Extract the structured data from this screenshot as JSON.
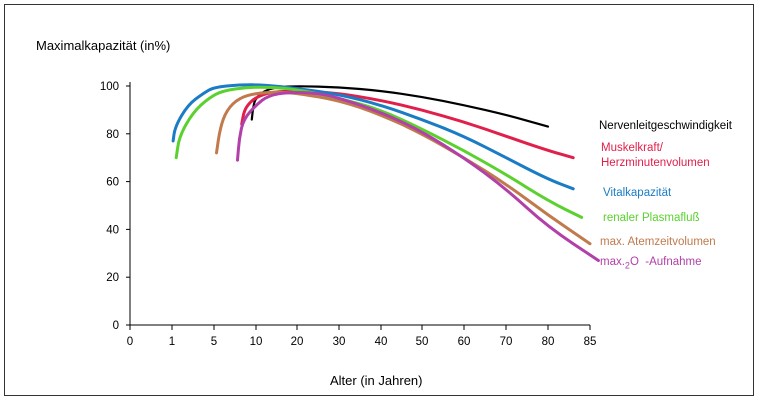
{
  "chart_data": {
    "type": "line",
    "title": "",
    "ylabel": "Maximalkapazität (in%)",
    "xlabel": "Alter (in Jahren)",
    "xticks": [
      0,
      1,
      5,
      10,
      20,
      30,
      40,
      50,
      60,
      70,
      80,
      85
    ],
    "yticks": [
      0,
      20,
      40,
      60,
      80,
      100
    ],
    "ylim": [
      0,
      100
    ],
    "grid": false,
    "legend_placement": "right",
    "series": [
      {
        "name": "Nervenleitgeschwindigkeit",
        "color": "#000000",
        "points": [
          [
            9.5,
            86
          ],
          [
            9.7,
            92
          ],
          [
            10,
            95
          ],
          [
            12,
            98
          ],
          [
            15,
            99.5
          ],
          [
            20,
            100
          ],
          [
            30,
            99.5
          ],
          [
            40,
            98
          ],
          [
            50,
            95.5
          ],
          [
            60,
            92
          ],
          [
            70,
            88
          ],
          [
            80,
            83
          ]
        ]
      },
      {
        "name": "Muskelkraft/ Herzminutenvolumen",
        "color": "#e0204a",
        "points": [
          [
            8.3,
            84
          ],
          [
            8.6,
            90
          ],
          [
            9.5,
            94
          ],
          [
            11,
            96
          ],
          [
            14,
            97.5
          ],
          [
            20,
            98
          ],
          [
            30,
            97
          ],
          [
            40,
            94
          ],
          [
            50,
            90
          ],
          [
            60,
            85
          ],
          [
            70,
            79
          ],
          [
            80,
            73
          ],
          [
            83,
            70
          ]
        ]
      },
      {
        "name": "Vitalkapazität",
        "color": "#1a7cc4",
        "points": [
          [
            1.1,
            77
          ],
          [
            1.3,
            83
          ],
          [
            2.5,
            92
          ],
          [
            4,
            97
          ],
          [
            5,
            99.5
          ],
          [
            8,
            100.5
          ],
          [
            12,
            100.5
          ],
          [
            20,
            99
          ],
          [
            30,
            96.5
          ],
          [
            40,
            92
          ],
          [
            50,
            86
          ],
          [
            60,
            79
          ],
          [
            70,
            70
          ],
          [
            80,
            61
          ],
          [
            83,
            57
          ]
        ]
      },
      {
        "name": "renaler Plasmafluß",
        "color": "#5ad12e",
        "points": [
          [
            1.4,
            70
          ],
          [
            1.7,
            79
          ],
          [
            3,
            89
          ],
          [
            4.5,
            95
          ],
          [
            6,
            98
          ],
          [
            9,
            99.5
          ],
          [
            14,
            99.5
          ],
          [
            20,
            98.5
          ],
          [
            30,
            95
          ],
          [
            40,
            90
          ],
          [
            50,
            82
          ],
          [
            60,
            73
          ],
          [
            70,
            63
          ],
          [
            80,
            52
          ],
          [
            84,
            45
          ]
        ]
      },
      {
        "name": "max. Atemzeitvolumen",
        "color": "#c07a4c",
        "points": [
          [
            5.3,
            72
          ],
          [
            5.7,
            82
          ],
          [
            6.5,
            90
          ],
          [
            8,
            95
          ],
          [
            10,
            97
          ],
          [
            15,
            97.5
          ],
          [
            20,
            97
          ],
          [
            30,
            94
          ],
          [
            40,
            88
          ],
          [
            50,
            80
          ],
          [
            60,
            70
          ],
          [
            70,
            59
          ],
          [
            80,
            46
          ],
          [
            85,
            34
          ]
        ]
      },
      {
        "name": "max.O₂-Aufnahme",
        "color": "#b140a8",
        "points": [
          [
            7.8,
            69
          ],
          [
            8,
            78
          ],
          [
            8.5,
            86
          ],
          [
            10,
            92
          ],
          [
            13,
            96
          ],
          [
            18,
            97.5
          ],
          [
            25,
            97
          ],
          [
            30,
            95
          ],
          [
            40,
            89
          ],
          [
            50,
            81
          ],
          [
            60,
            70
          ],
          [
            70,
            57
          ],
          [
            80,
            41
          ],
          [
            86,
            27
          ]
        ]
      }
    ]
  },
  "legend": {
    "nerv": "Nervenleitgeschwindigkeit",
    "muskel1": "Muskelkraft/",
    "muskel2": "Herzminutenvolumen",
    "vital": "Vitalkapazität",
    "renal": "renaler Plasmafluß",
    "atem": "max. Atemzeitvolumen",
    "o2_pre": "max.",
    "o2_sub": "2",
    "o2_main": "O",
    "o2_post": "-Aufnahme"
  },
  "colors": {
    "nerv": "#000000",
    "muskel": "#e0204a",
    "vital": "#1a7cc4",
    "renal": "#5ad12e",
    "atem": "#c07a4c",
    "o2": "#b140a8"
  }
}
